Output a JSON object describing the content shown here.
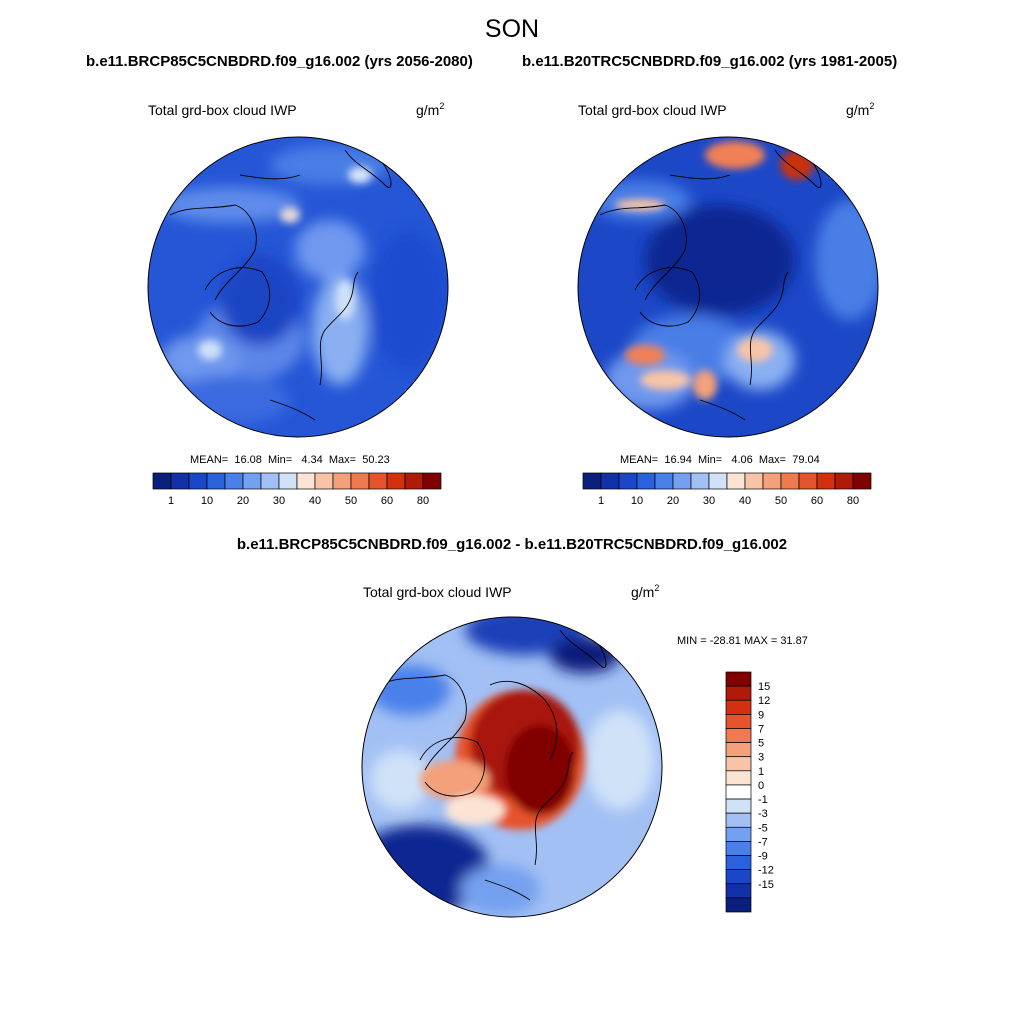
{
  "page": {
    "season": "SON",
    "case_a": "b.e11.BRCP85C5CNBDRD.f09_g16.002 (yrs 2056-2080)",
    "case_b": "b.e11.B20TRC5CNBDRD.f09_g16.002 (yrs 1981-2005)",
    "diff_title": "b.e11.BRCP85C5CNBDRD.f09_g16.002 - b.e11.B20TRC5CNBDRD.f09_g16.002"
  },
  "panels": [
    {
      "variable": "Total grd-box cloud IWP",
      "units": "g/m",
      "units_sup": "2",
      "stats": {
        "mean_label": "MEAN=",
        "mean": "16.08",
        "min_label": "Min=",
        "min": "4.34",
        "max_label": "Max=",
        "max": "50.23"
      }
    },
    {
      "variable": "Total grd-box cloud IWP",
      "units": "g/m",
      "units_sup": "2",
      "stats": {
        "mean_label": "MEAN=",
        "mean": "16.94",
        "min_label": "Min=",
        "min": "4.06",
        "max_label": "Max=",
        "max": "79.04"
      }
    },
    {
      "variable": "Total grd-box cloud IWP",
      "units": "g/m",
      "units_sup": "2",
      "stats_text": "MIN = -28.81 MAX =  31.87"
    }
  ],
  "colorbar_abs": {
    "colors": [
      "#0a1e7c",
      "#1230a8",
      "#1a46c8",
      "#2a62de",
      "#4a80ea",
      "#74a0f0",
      "#a2c0f4",
      "#d0e2f8",
      "#fbe4d4",
      "#f8c4a8",
      "#f4a07a",
      "#f07a50",
      "#e6532c",
      "#d4300f",
      "#b01a08",
      "#800000"
    ],
    "labels": [
      "1",
      "10",
      "20",
      "30",
      "40",
      "50",
      "60",
      "80"
    ]
  },
  "colorbar_diff": {
    "colors": [
      "#800000",
      "#b01a08",
      "#d4300f",
      "#e6532c",
      "#f07a50",
      "#f4a07a",
      "#f8c4a8",
      "#fbe4d4",
      "#ffffff",
      "#d0e2f8",
      "#a2c0f4",
      "#74a0f0",
      "#4a80ea",
      "#2a62de",
      "#1a46c8",
      "#1230a8",
      "#0a1e7c"
    ],
    "labels": [
      "15",
      "12",
      "9",
      "7",
      "5",
      "3",
      "1",
      "0",
      "-1",
      "-3",
      "-5",
      "-7",
      "-9",
      "-12",
      "-15"
    ]
  }
}
